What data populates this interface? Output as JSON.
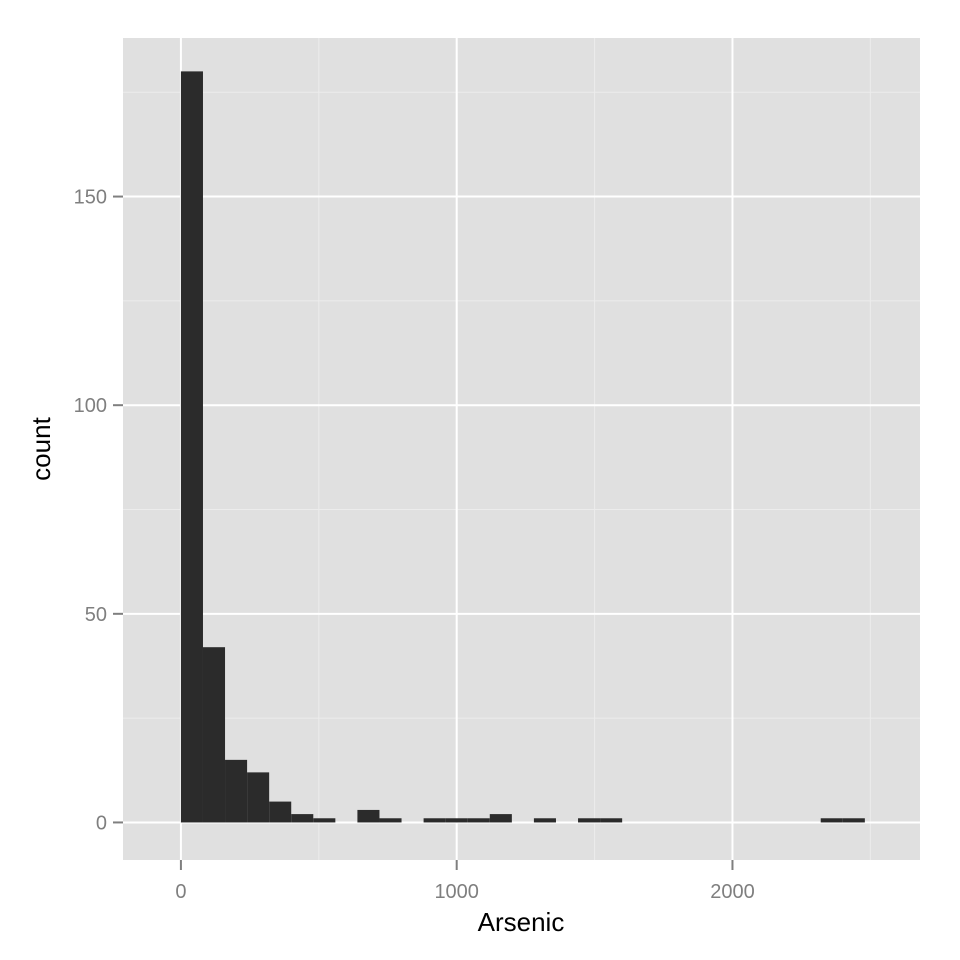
{
  "chart_data": {
    "type": "bar",
    "subtype": "histogram",
    "xlabel": "Arsenic",
    "ylabel": "count",
    "xlim": [
      -210,
      2680
    ],
    "ylim": [
      -9,
      188
    ],
    "x_ticks": [
      0,
      1000,
      2000
    ],
    "x_minor_ticks": [
      500,
      1500,
      2500
    ],
    "y_ticks": [
      0,
      50,
      100,
      150
    ],
    "y_minor_ticks": [
      25,
      75,
      125,
      175
    ],
    "bin_width": 80,
    "bins": [
      {
        "start": 0,
        "end": 80,
        "count": 180
      },
      {
        "start": 80,
        "end": 160,
        "count": 42
      },
      {
        "start": 160,
        "end": 240,
        "count": 15
      },
      {
        "start": 240,
        "end": 320,
        "count": 12
      },
      {
        "start": 320,
        "end": 400,
        "count": 5
      },
      {
        "start": 400,
        "end": 480,
        "count": 2
      },
      {
        "start": 480,
        "end": 560,
        "count": 1
      },
      {
        "start": 560,
        "end": 640,
        "count": 0
      },
      {
        "start": 640,
        "end": 720,
        "count": 3
      },
      {
        "start": 720,
        "end": 800,
        "count": 1
      },
      {
        "start": 800,
        "end": 880,
        "count": 0
      },
      {
        "start": 880,
        "end": 960,
        "count": 1
      },
      {
        "start": 960,
        "end": 1040,
        "count": 1
      },
      {
        "start": 1040,
        "end": 1120,
        "count": 1
      },
      {
        "start": 1120,
        "end": 1200,
        "count": 2
      },
      {
        "start": 1200,
        "end": 1280,
        "count": 0
      },
      {
        "start": 1280,
        "end": 1360,
        "count": 1
      },
      {
        "start": 1360,
        "end": 1440,
        "count": 0
      },
      {
        "start": 1440,
        "end": 1520,
        "count": 1
      },
      {
        "start": 1520,
        "end": 1600,
        "count": 1
      },
      {
        "start": 2320,
        "end": 2400,
        "count": 1
      },
      {
        "start": 2400,
        "end": 2480,
        "count": 1
      }
    ],
    "grid": true,
    "colors": {
      "panel_background": "#e0e0e0",
      "grid_major": "#ffffff",
      "grid_minor": "#ececec",
      "bar_fill": "#2b2b2b",
      "tick_label": "#7f7f7f",
      "axis_title": "#000000"
    }
  }
}
